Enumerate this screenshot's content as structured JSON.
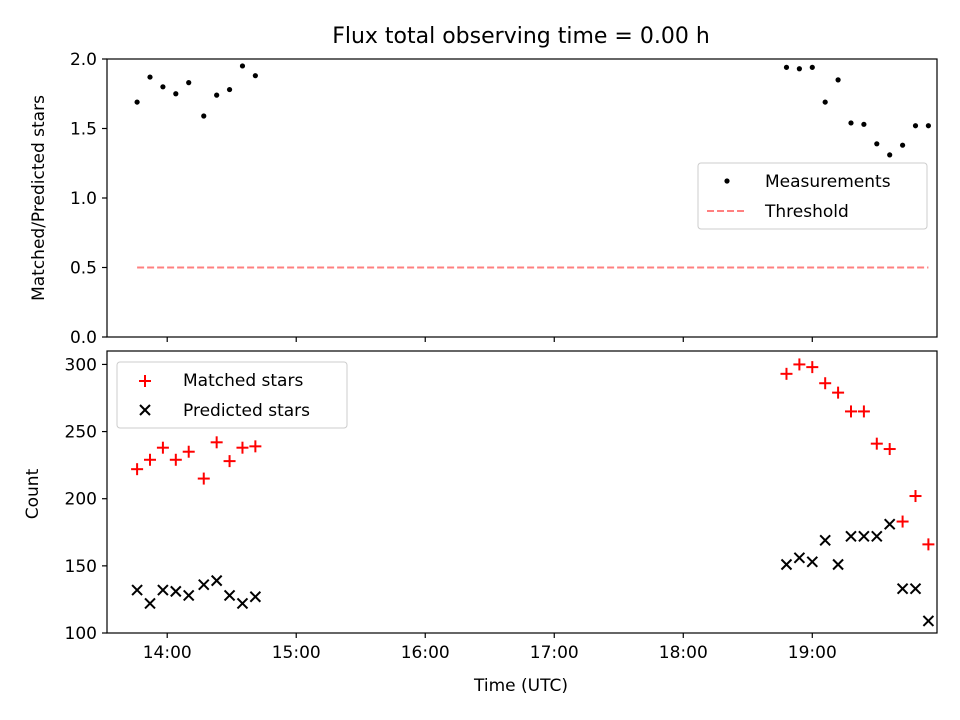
{
  "figure": {
    "title": "Flux total observing time = 0.00 h"
  },
  "chart_data": [
    {
      "type": "scatter",
      "ylabel": "Matched/Predicted stars",
      "xlabel": "",
      "xlim": [
        "13:32",
        "19:58"
      ],
      "ylim": [
        0.0,
        2.0
      ],
      "x_ticks": [
        "14:00",
        "15:00",
        "16:00",
        "17:00",
        "18:00",
        "19:00"
      ],
      "y_ticks": [
        "0.0",
        "0.5",
        "1.0",
        "1.5",
        "2.0"
      ],
      "y_tick_values": [
        0.0,
        0.5,
        1.0,
        1.5,
        2.0
      ],
      "legend": {
        "placement": "center-right"
      },
      "series": [
        {
          "name": "Measurements",
          "marker": "dot",
          "color": "#000000",
          "x": [
            "13:46",
            "13:52",
            "13:58",
            "14:04",
            "14:10",
            "14:17",
            "14:23",
            "14:29",
            "14:35",
            "14:41",
            "18:48",
            "18:54",
            "19:00",
            "19:06",
            "19:12",
            "19:18",
            "19:24",
            "19:30",
            "19:36",
            "19:42",
            "19:48",
            "19:54"
          ],
          "y": [
            1.69,
            1.87,
            1.8,
            1.75,
            1.83,
            1.59,
            1.74,
            1.78,
            1.95,
            1.88,
            1.94,
            1.93,
            1.94,
            1.69,
            1.85,
            1.54,
            1.53,
            1.39,
            1.31,
            1.38,
            1.52,
            1.52
          ]
        },
        {
          "name": "Threshold",
          "style": "dashed",
          "color": "#ff8080",
          "x": [
            "13:46",
            "19:54"
          ],
          "y": [
            0.5,
            0.5
          ]
        }
      ]
    },
    {
      "type": "scatter",
      "ylabel": "Count",
      "xlabel": "Time (UTC)",
      "xlim": [
        "13:32",
        "19:58"
      ],
      "ylim": [
        100,
        310
      ],
      "x_ticks": [
        "14:00",
        "15:00",
        "16:00",
        "17:00",
        "18:00",
        "19:00"
      ],
      "y_ticks": [
        "100",
        "150",
        "200",
        "250",
        "300"
      ],
      "y_tick_values": [
        100,
        150,
        200,
        250,
        300
      ],
      "legend": {
        "placement": "top-left"
      },
      "series": [
        {
          "name": "Matched stars",
          "marker": "plus",
          "color": "#ff0000",
          "x": [
            "13:46",
            "13:52",
            "13:58",
            "14:04",
            "14:10",
            "14:17",
            "14:23",
            "14:29",
            "14:35",
            "14:41",
            "18:48",
            "18:54",
            "19:00",
            "19:06",
            "19:12",
            "19:18",
            "19:24",
            "19:30",
            "19:36",
            "19:42",
            "19:48",
            "19:54"
          ],
          "y": [
            222,
            229,
            238,
            229,
            235,
            215,
            242,
            228,
            238,
            239,
            293,
            300,
            298,
            286,
            279,
            265,
            265,
            241,
            237,
            183,
            202,
            166
          ]
        },
        {
          "name": "Predicted stars",
          "marker": "x",
          "color": "#000000",
          "x": [
            "13:46",
            "13:52",
            "13:58",
            "14:04",
            "14:10",
            "14:17",
            "14:23",
            "14:29",
            "14:35",
            "14:41",
            "18:48",
            "18:54",
            "19:00",
            "19:06",
            "19:12",
            "19:18",
            "19:24",
            "19:30",
            "19:36",
            "19:42",
            "19:48",
            "19:54"
          ],
          "y": [
            132,
            122,
            132,
            131,
            128,
            136,
            139,
            128,
            122,
            127,
            151,
            156,
            153,
            169,
            151,
            172,
            172,
            172,
            181,
            133,
            133,
            109
          ]
        }
      ]
    }
  ]
}
